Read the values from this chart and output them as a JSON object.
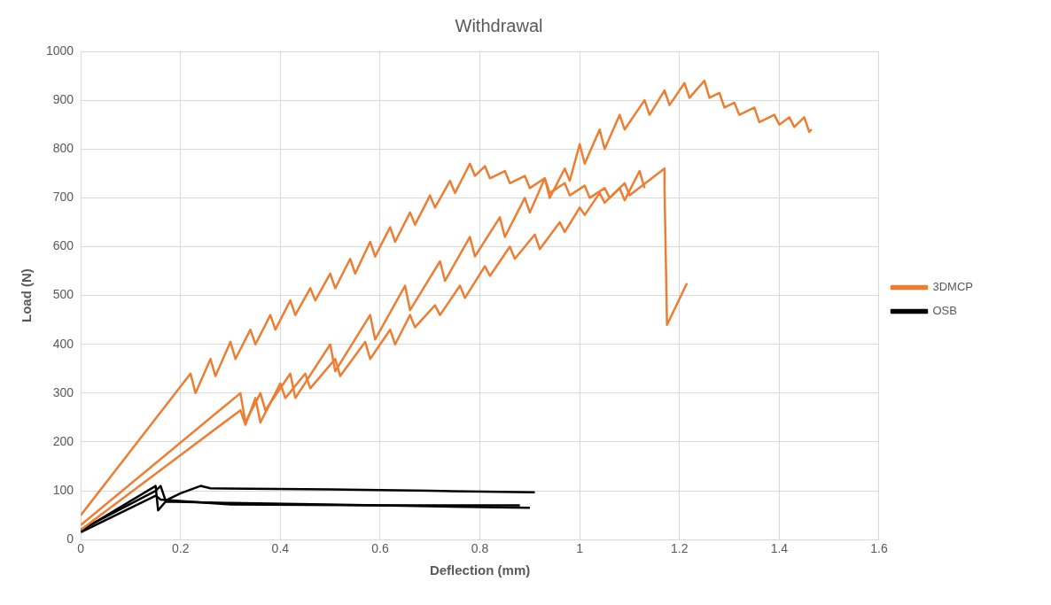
{
  "chart_data": {
    "type": "line",
    "title": "Withdrawal",
    "xlabel": "Deflection (mm)",
    "ylabel": "Load (N)",
    "xlim": [
      0,
      1.6
    ],
    "xticks": [
      0,
      0.2,
      0.4,
      0.6,
      0.8,
      1,
      1.2,
      1.4,
      1.6
    ],
    "ylim": [
      0,
      1000
    ],
    "yticks": [
      0,
      100,
      200,
      300,
      400,
      500,
      600,
      700,
      800,
      900,
      1000
    ],
    "grid": true,
    "legend": "right",
    "marker": "none",
    "line_style": "solid",
    "series": [
      {
        "name": "3DMCP",
        "color": "#ed7d31",
        "x": [
          0,
          0.22,
          0.23,
          0.26,
          0.27,
          0.3,
          0.31,
          0.34,
          0.35,
          0.38,
          0.39,
          0.42,
          0.43,
          0.46,
          0.47,
          0.5,
          0.51,
          0.54,
          0.55,
          0.58,
          0.59,
          0.62,
          0.63,
          0.66,
          0.67,
          0.7,
          0.71,
          0.74,
          0.75,
          0.78,
          0.79,
          0.81,
          0.82,
          0.85,
          0.86,
          0.89,
          0.9,
          0.93,
          0.94,
          0.97,
          0.98,
          1.01,
          1.02,
          1.05,
          1.06,
          1.09,
          1.1,
          1.17,
          1.17,
          1.175,
          1.215
        ],
        "values": [
          50,
          340,
          300,
          370,
          335,
          405,
          370,
          430,
          400,
          460,
          430,
          490,
          460,
          515,
          490,
          545,
          515,
          575,
          545,
          610,
          580,
          640,
          610,
          670,
          645,
          705,
          680,
          735,
          710,
          770,
          745,
          765,
          740,
          755,
          730,
          745,
          720,
          740,
          710,
          730,
          705,
          725,
          700,
          720,
          700,
          730,
          705,
          760,
          720,
          440,
          525
        ]
      },
      {
        "color": "#ed7d31",
        "x": [
          0,
          0.32,
          0.33,
          0.36,
          0.37,
          0.42,
          0.43,
          0.5,
          0.51,
          0.58,
          0.59,
          0.65,
          0.66,
          0.72,
          0.73,
          0.78,
          0.79,
          0.84,
          0.85,
          0.89,
          0.9,
          0.93,
          0.94,
          0.97,
          0.98,
          1.0,
          1.01,
          1.04,
          1.05,
          1.08,
          1.09,
          1.13,
          1.14,
          1.17,
          1.18,
          1.21,
          1.22,
          1.25,
          1.26,
          1.28,
          1.29,
          1.31,
          1.32,
          1.35,
          1.36,
          1.39,
          1.4,
          1.42,
          1.43,
          1.45,
          1.46,
          1.465
        ],
        "values": [
          30,
          300,
          240,
          300,
          265,
          340,
          290,
          400,
          345,
          460,
          410,
          520,
          470,
          570,
          530,
          620,
          580,
          660,
          620,
          700,
          670,
          740,
          700,
          760,
          735,
          810,
          770,
          840,
          800,
          870,
          840,
          900,
          870,
          920,
          890,
          935,
          905,
          940,
          905,
          915,
          885,
          895,
          870,
          885,
          855,
          870,
          850,
          865,
          845,
          865,
          835,
          840
        ]
      },
      {
        "color": "#ed7d31",
        "x": [
          0,
          0.32,
          0.33,
          0.35,
          0.36,
          0.4,
          0.41,
          0.45,
          0.46,
          0.51,
          0.52,
          0.57,
          0.58,
          0.62,
          0.63,
          0.66,
          0.67,
          0.71,
          0.72,
          0.76,
          0.77,
          0.81,
          0.82,
          0.86,
          0.87,
          0.91,
          0.92,
          0.96,
          0.97,
          1.0,
          1.01,
          1.04,
          1.05,
          1.08,
          1.09,
          1.12,
          1.13
        ],
        "values": [
          20,
          265,
          235,
          290,
          240,
          320,
          290,
          340,
          310,
          370,
          335,
          405,
          370,
          430,
          400,
          460,
          435,
          480,
          460,
          520,
          495,
          560,
          540,
          600,
          575,
          625,
          595,
          650,
          630,
          680,
          665,
          710,
          690,
          720,
          695,
          755,
          720
        ]
      },
      {
        "name": "OSB",
        "color": "#000000",
        "x": [
          0,
          0.15,
          0.16,
          0.17,
          0.2,
          0.24,
          0.26,
          0.5,
          0.7,
          0.91
        ],
        "values": [
          20,
          100,
          110,
          80,
          95,
          110,
          105,
          103,
          100,
          97
        ]
      },
      {
        "color": "#000000",
        "x": [
          0,
          0.15,
          0.155,
          0.17,
          0.3,
          0.6,
          0.9
        ],
        "values": [
          18,
          110,
          60,
          78,
          75,
          70,
          65
        ]
      },
      {
        "color": "#000000",
        "x": [
          0,
          0.15,
          0.16,
          0.3,
          0.6,
          0.88
        ],
        "values": [
          15,
          90,
          82,
          72,
          70,
          70
        ]
      }
    ]
  }
}
